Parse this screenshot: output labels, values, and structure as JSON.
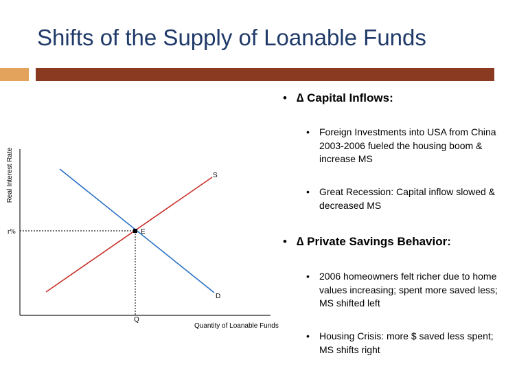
{
  "slide": {
    "title": "Shifts of the Supply of Loanable Funds"
  },
  "diagram": {
    "y_axis_label": "Real Interest Rate",
    "x_axis_label": "Quantity of Loanable Funds",
    "rate_label": "r%",
    "quantity_label": "Q",
    "equilibrium_label": "E",
    "supply_label": "S",
    "demand_label": "D",
    "supply_color": "#c8302a",
    "demand_color": "#2a6fc2"
  },
  "bullets": [
    {
      "heading": "∆ Capital Inflows:",
      "items": [
        "Foreign Investments into USA from China 2003-2006 fueled the housing boom & increase MS",
        "Great Recession: Capital inflow slowed & decreased MS"
      ]
    },
    {
      "heading": "∆ Private Savings Behavior:",
      "items": [
        "2006 homeowners felt richer due to home values increasing; spent more saved less; MS shifted left",
        "Housing Crisis: more $ saved less spent; MS shifts right"
      ]
    }
  ],
  "bullet_glyph": "•"
}
